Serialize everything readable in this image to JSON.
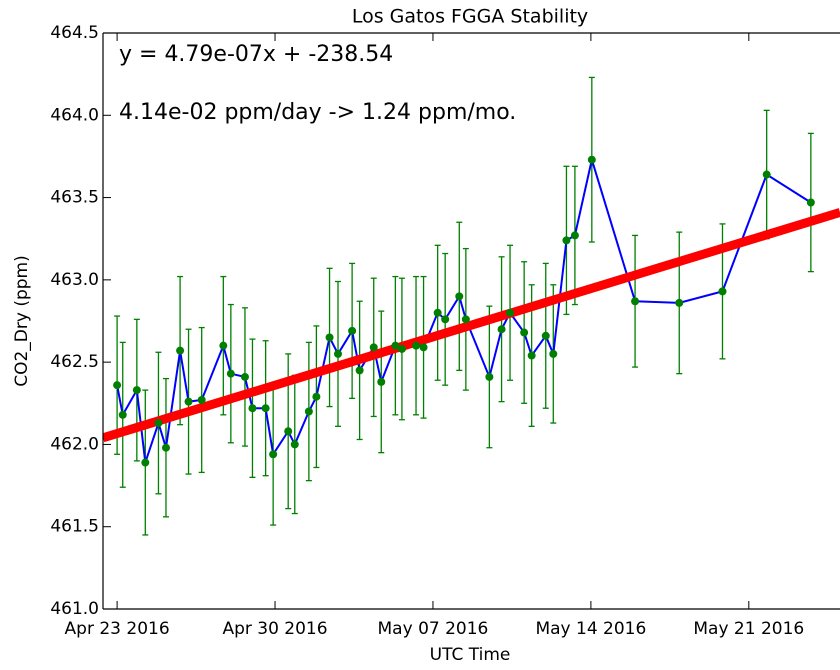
{
  "chart_data": {
    "type": "errorbar_line",
    "title": "Los Gatos FGGA Stability",
    "x_label": "UTC Time",
    "y_label": "CO2_Dry (ppm)",
    "annotations": [
      "y = 4.79e-07x + -238.54",
      "4.14e-02 ppm/day -> 1.24 ppm/mo."
    ],
    "xlim": [
      "2016-04-22T09:00",
      "2016-05-25T01:00"
    ],
    "xticks": [
      {
        "value": "2016-04-23T00:00",
        "label": "Apr 23 2016"
      },
      {
        "value": "2016-04-30T00:00",
        "label": "Apr 30 2016"
      },
      {
        "value": "2016-05-07T00:00",
        "label": "May 07 2016"
      },
      {
        "value": "2016-05-14T00:00",
        "label": "May 14 2016"
      },
      {
        "value": "2016-05-21T00:00",
        "label": "May 21 2016"
      }
    ],
    "ylim": [
      461.0,
      464.5
    ],
    "yticks": [
      {
        "value": 461.0,
        "label": "461.0"
      },
      {
        "value": 461.5,
        "label": "461.5"
      },
      {
        "value": 462.0,
        "label": "462.0"
      },
      {
        "value": 462.5,
        "label": "462.5"
      },
      {
        "value": 463.0,
        "label": "463.0"
      },
      {
        "value": 463.5,
        "label": "463.5"
      },
      {
        "value": 464.0,
        "label": "464.0"
      },
      {
        "value": 464.5,
        "label": "464.5"
      }
    ],
    "x": [
      "2016-04-23T00:00",
      "2016-04-23T06:00",
      "2016-04-23T21:00",
      "2016-04-24T06:00",
      "2016-04-24T20:00",
      "2016-04-25T04:00",
      "2016-04-25T19:00",
      "2016-04-26T04:00",
      "2016-04-26T18:00",
      "2016-04-27T17:00",
      "2016-04-28T01:00",
      "2016-04-28T16:00",
      "2016-04-29T00:00",
      "2016-04-29T14:00",
      "2016-04-29T22:00",
      "2016-04-30T14:00",
      "2016-04-30T21:00",
      "2016-05-01T12:00",
      "2016-05-01T20:00",
      "2016-05-02T10:00",
      "2016-05-02T19:00",
      "2016-05-03T10:00",
      "2016-05-03T18:00",
      "2016-05-04T09:00",
      "2016-05-04T17:00",
      "2016-05-05T08:00",
      "2016-05-05T15:00",
      "2016-05-06T06:00",
      "2016-05-06T14:00",
      "2016-05-07T05:00",
      "2016-05-07T13:00",
      "2016-05-08T04:00",
      "2016-05-08T11:00",
      "2016-05-09T12:00",
      "2016-05-10T01:00",
      "2016-05-10T10:00",
      "2016-05-11T01:00",
      "2016-05-11T09:00",
      "2016-05-12T00:00",
      "2016-05-12T08:00",
      "2016-05-12T22:00",
      "2016-05-13T07:00",
      "2016-05-14T01:00",
      "2016-05-15T23:00",
      "2016-05-17T22:00",
      "2016-05-19T20:00",
      "2016-05-21T19:00",
      "2016-05-23T18:00"
    ],
    "series": [
      {
        "color": "blue",
        "marker_color": "green",
        "error_color": "green",
        "values": [
          462.36,
          462.18,
          462.33,
          461.89,
          462.13,
          461.98,
          462.57,
          462.26,
          462.27,
          462.6,
          462.43,
          462.41,
          462.22,
          462.22,
          461.94,
          462.08,
          462.0,
          462.2,
          462.29,
          462.65,
          462.55,
          462.69,
          462.45,
          462.59,
          462.38,
          462.6,
          462.58,
          462.6,
          462.59,
          462.8,
          462.76,
          462.9,
          462.76,
          462.41,
          462.7,
          462.8,
          462.68,
          462.54,
          462.66,
          462.55,
          463.24,
          463.27,
          463.73,
          462.87,
          462.86,
          462.93,
          463.64,
          463.47
        ],
        "errors": [
          0.42,
          0.44,
          0.43,
          0.44,
          0.43,
          0.42,
          0.45,
          0.44,
          0.44,
          0.42,
          0.42,
          0.42,
          0.42,
          0.41,
          0.43,
          0.47,
          0.42,
          0.42,
          0.43,
          0.42,
          0.44,
          0.41,
          0.42,
          0.42,
          0.43,
          0.42,
          0.43,
          0.42,
          0.43,
          0.41,
          0.4,
          0.45,
          0.43,
          0.43,
          0.44,
          0.41,
          0.43,
          0.43,
          0.44,
          0.42,
          0.45,
          0.42,
          0.5,
          0.4,
          0.43,
          0.41,
          0.39,
          0.42
        ]
      }
    ],
    "fit": {
      "color": "red",
      "x": [
        "2016-04-22T09:00",
        "2016-05-25T01:00"
      ],
      "values": [
        462.04,
        463.41
      ]
    }
  }
}
